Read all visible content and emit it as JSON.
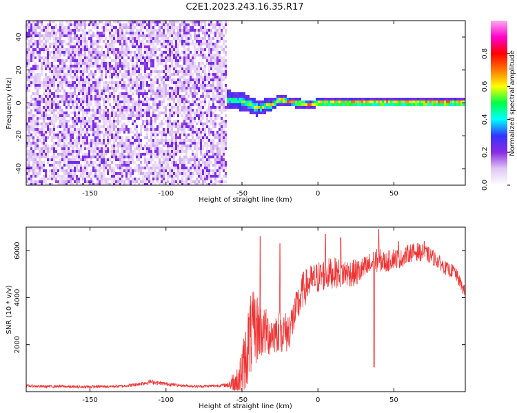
{
  "figure": {
    "title": "C2E1.2023.243.16.35.R17"
  },
  "colorbar": {
    "label": "Normalized spectral amplitude",
    "range": [
      0,
      1
    ],
    "ticks": [
      "0.0",
      "0.2",
      "0.4",
      "0.6",
      "0.8"
    ],
    "tick_values": [
      0.0,
      0.2,
      0.4,
      0.6,
      0.8
    ],
    "colormap": [
      "#ffffff",
      "#e0c8f4",
      "#8a2be2",
      "#3333ff",
      "#00ffff",
      "#00ff44",
      "#ffff00",
      "#ff7700",
      "#ff0000",
      "#ff00cc",
      "#ffaaee"
    ]
  },
  "chart_data": [
    {
      "type": "heatmap",
      "title": "",
      "xlabel": "Height of straight line (km)",
      "ylabel": "Frequency (Hz)",
      "xlim": [
        -192,
        97
      ],
      "ylim": [
        -50,
        50
      ],
      "x_ticks": [
        "-150",
        "-100",
        "-50",
        "0",
        "50"
      ],
      "x_tick_values": [
        -150,
        -100,
        -50,
        0,
        50
      ],
      "y_ticks": [
        "-40",
        "-20",
        "0",
        "20",
        "40"
      ],
      "y_tick_values": [
        -40,
        -20,
        0,
        20,
        40
      ],
      "noise_region_x": [
        -192,
        -60
      ],
      "signal_band": {
        "x_start": -62,
        "x_end": 97,
        "center_freq": [
          [
            -62,
            2
          ],
          [
            -50,
            1
          ],
          [
            -40,
            -3
          ],
          [
            -30,
            -1
          ],
          [
            -25,
            2
          ],
          [
            -15,
            0
          ],
          [
            -5,
            -1
          ],
          [
            0,
            0
          ],
          [
            10,
            0
          ],
          [
            97,
            0
          ]
        ],
        "half_width": [
          [
            -62,
            6
          ],
          [
            -40,
            5
          ],
          [
            -25,
            3
          ],
          [
            0,
            2.5
          ],
          [
            97,
            2.5
          ]
        ],
        "peak_amplitude": [
          [
            -62,
            0.5
          ],
          [
            -40,
            0.6
          ],
          [
            -20,
            0.8
          ],
          [
            0,
            0.85
          ],
          [
            97,
            0.9
          ]
        ]
      },
      "grid": false
    },
    {
      "type": "line",
      "title": "",
      "xlabel": "Height of straight line (km)",
      "ylabel": "SNR (10 * v/v)",
      "xlim": [
        -192,
        97
      ],
      "ylim": [
        0,
        7000
      ],
      "x_ticks": [
        "-150",
        "-100",
        "-50",
        "0",
        "50"
      ],
      "x_tick_values": [
        -150,
        -100,
        -50,
        0,
        50
      ],
      "y_ticks": [
        "2000",
        "4000",
        "6000"
      ],
      "y_tick_values": [
        2000,
        4000,
        6000
      ],
      "line_color": "#ee3333",
      "series": [
        {
          "x": [
            -192,
            -180,
            -170,
            -160,
            -150,
            -140,
            -130,
            -120,
            -110,
            -100,
            -90,
            -80,
            -70,
            -60,
            -52,
            -48,
            -45,
            -42,
            -40,
            -38,
            -35,
            -30,
            -25,
            -20,
            -15,
            -10,
            -5,
            0,
            5,
            10,
            15,
            20,
            25,
            30,
            35,
            37,
            40,
            45,
            50,
            55,
            60,
            65,
            70,
            75,
            80,
            85,
            90,
            97
          ],
          "y": [
            250,
            220,
            230,
            200,
            210,
            220,
            230,
            300,
            420,
            330,
            260,
            230,
            240,
            280,
            450,
            1300,
            2300,
            2600,
            2700,
            2600,
            2500,
            2450,
            2600,
            2500,
            3300,
            4300,
            4700,
            4850,
            5000,
            5050,
            5050,
            5050,
            5050,
            5200,
            5400,
            5550,
            5600,
            5500,
            5700,
            5650,
            5900,
            5950,
            5900,
            5750,
            5500,
            5200,
            5100,
            4200
          ],
          "noise_amplitude": [
            60,
            60,
            60,
            60,
            60,
            60,
            60,
            80,
            100,
            80,
            60,
            60,
            60,
            80,
            900,
            1400,
            1800,
            1700,
            1500,
            1200,
            1100,
            900,
            900,
            900,
            850,
            800,
            700,
            700,
            700,
            650,
            650,
            600,
            600,
            550,
            550,
            500,
            500,
            450,
            450,
            400,
            400,
            400,
            350,
            350,
            300,
            300,
            300,
            250
          ],
          "dips": [
            [
              37,
              1050
            ]
          ],
          "spikes": [
            [
              -38,
              6600
            ],
            [
              -25,
              6300
            ],
            [
              5,
              6700
            ],
            [
              15,
              6550
            ],
            [
              40,
              6900
            ],
            [
              53,
              6400
            ],
            [
              70,
              6400
            ]
          ]
        }
      ],
      "grid": false
    }
  ]
}
